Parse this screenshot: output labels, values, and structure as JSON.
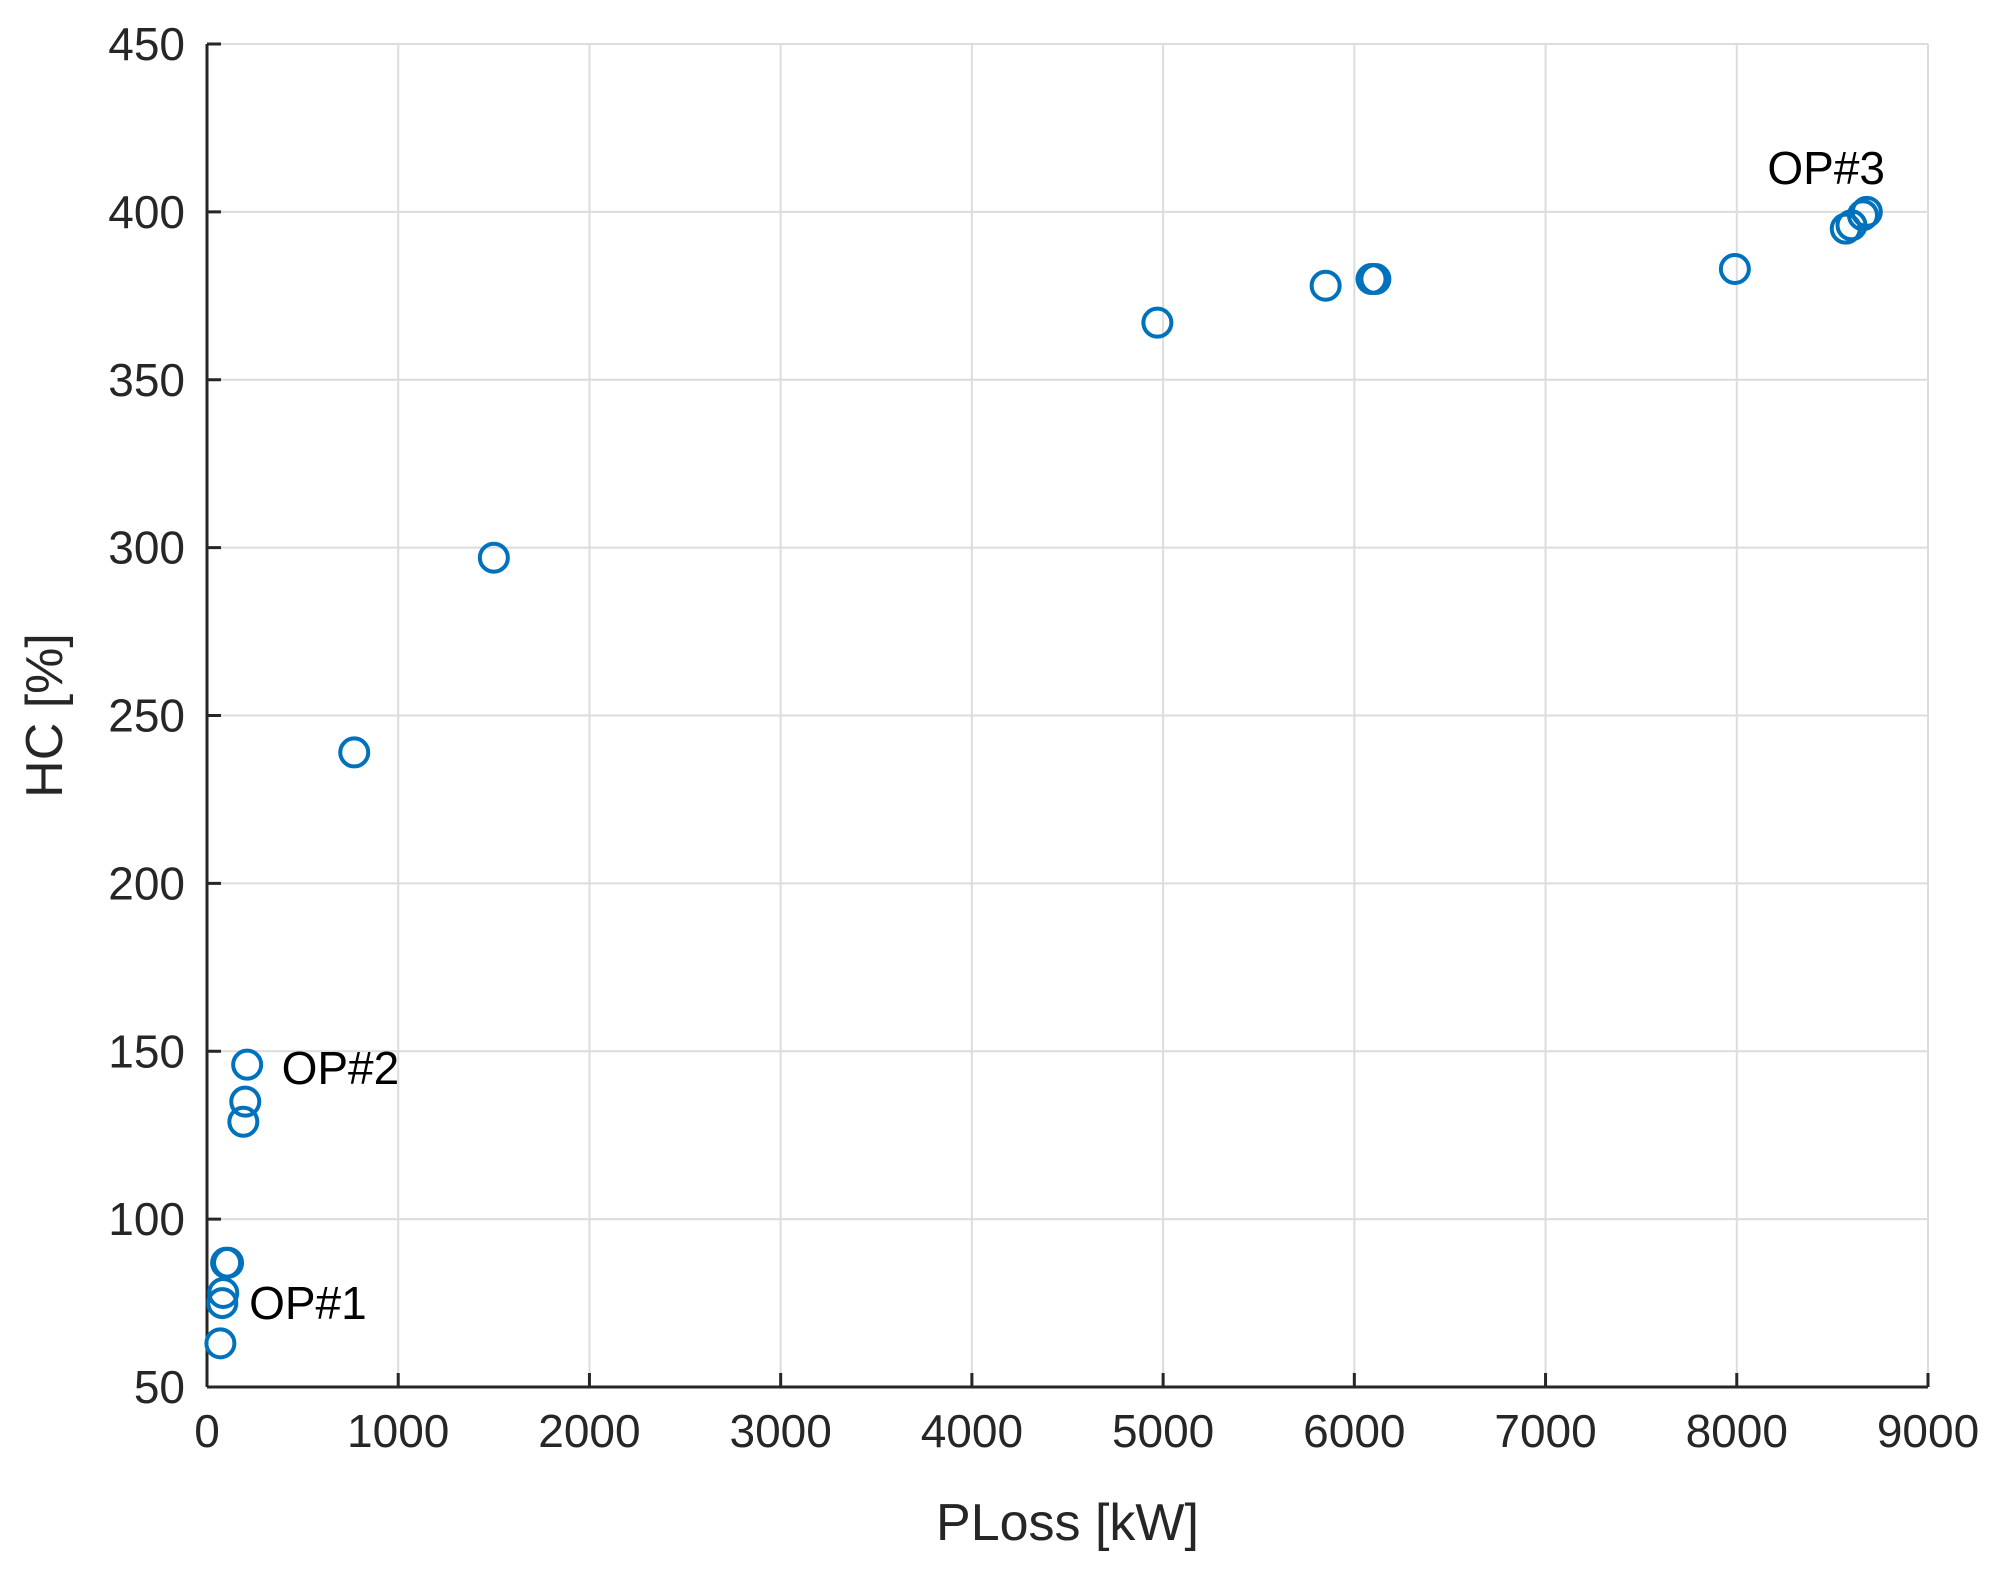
{
  "chart_data": {
    "type": "scatter",
    "title": "",
    "xlabel": "PLoss [kW]",
    "ylabel": "HC [%]",
    "xlim": [
      0,
      9000
    ],
    "ylim": [
      50,
      450
    ],
    "xticks": [
      0,
      1000,
      2000,
      3000,
      4000,
      5000,
      6000,
      7000,
      8000,
      9000
    ],
    "yticks": [
      50,
      100,
      150,
      200,
      250,
      300,
      350,
      400,
      450
    ],
    "xtick_labels": [
      "0",
      "1000",
      "2000",
      "3000",
      "4000",
      "5000",
      "6000",
      "7000",
      "8000",
      "9000"
    ],
    "ytick_labels": [
      "50",
      "100",
      "150",
      "200",
      "250",
      "300",
      "350",
      "400",
      "450"
    ],
    "grid": true,
    "marker": "circle-open",
    "color": "#0072BD",
    "series": [
      {
        "points": [
          {
            "x": 70,
            "y": 63
          },
          {
            "x": 80,
            "y": 75
          },
          {
            "x": 85,
            "y": 78
          },
          {
            "x": 100,
            "y": 87
          },
          {
            "x": 110,
            "y": 87
          },
          {
            "x": 190,
            "y": 129
          },
          {
            "x": 200,
            "y": 135
          },
          {
            "x": 210,
            "y": 146
          },
          {
            "x": 770,
            "y": 239
          },
          {
            "x": 1500,
            "y": 297
          },
          {
            "x": 4970,
            "y": 367
          },
          {
            "x": 5850,
            "y": 378
          },
          {
            "x": 6090,
            "y": 380
          },
          {
            "x": 6110,
            "y": 380
          },
          {
            "x": 7990,
            "y": 383
          },
          {
            "x": 8570,
            "y": 395
          },
          {
            "x": 8600,
            "y": 396
          },
          {
            "x": 8660,
            "y": 399
          },
          {
            "x": 8680,
            "y": 400
          }
        ]
      }
    ],
    "annotations": [
      {
        "text": "OP#1",
        "x": 220,
        "y": 75
      },
      {
        "text": "OP#2",
        "x": 390,
        "y": 145
      },
      {
        "text": "OP#3",
        "x": 8160,
        "y": 413
      }
    ]
  }
}
